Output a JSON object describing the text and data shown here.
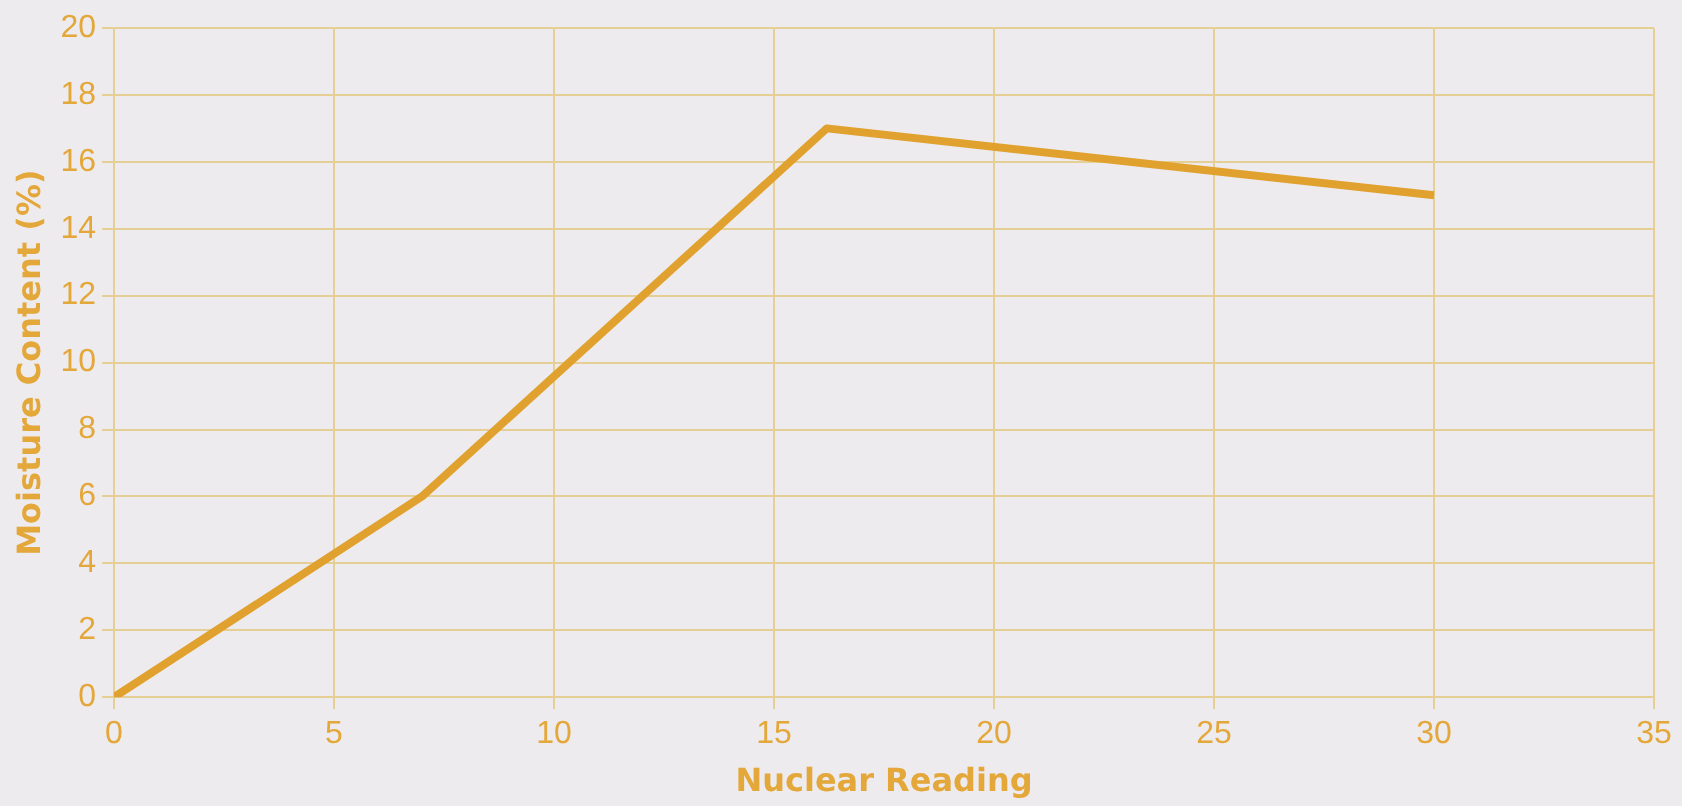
{
  "chart_data": {
    "type": "line",
    "xlabel": "Nuclear Reading",
    "ylabel": "Moisture Content (%)",
    "x": [
      0,
      7,
      16.2,
      30
    ],
    "series": [
      {
        "color": "#e0a12e",
        "values": [
          0,
          6,
          17,
          15
        ]
      }
    ],
    "xlim": [
      0,
      35
    ],
    "xticks": [
      0,
      5,
      10,
      15,
      20,
      25,
      30,
      35
    ],
    "ylim": [
      0,
      20
    ],
    "yticks": [
      0,
      2,
      4,
      6,
      8,
      10,
      12,
      14,
      16,
      18,
      20
    ],
    "grid": true,
    "legend": false,
    "marker": "none",
    "line_style": "solid"
  }
}
